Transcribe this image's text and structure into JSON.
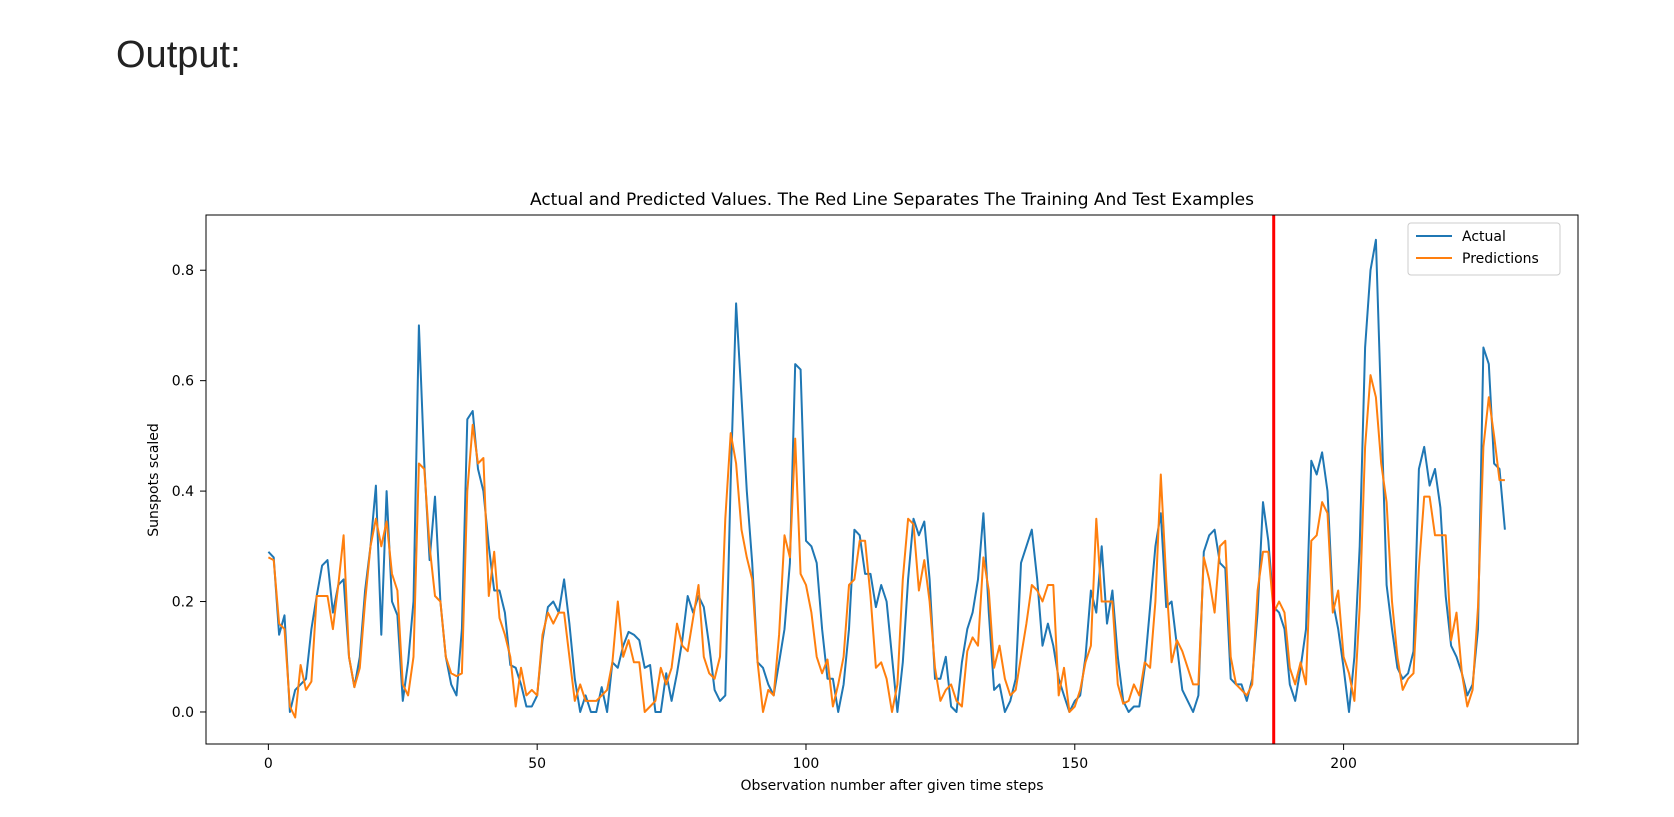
{
  "page": {
    "heading": "Output:"
  },
  "chart_data": {
    "type": "line",
    "title": "Actual and Predicted Values. The Red Line Separates The Training And Test Examples",
    "xlabel": "Observation number after given time steps",
    "ylabel": "Sunspots scaled",
    "xlim": [
      -11.6,
      243.6
    ],
    "ylim": [
      -0.058,
      0.9
    ],
    "xticks": [
      0,
      50,
      100,
      150,
      200
    ],
    "yticks": [
      0.0,
      0.2,
      0.4,
      0.6,
      0.8
    ],
    "xtick_labels": [
      "0",
      "50",
      "100",
      "150",
      "200"
    ],
    "ytick_labels": [
      "0.0",
      "0.2",
      "0.4",
      "0.6",
      "0.8"
    ],
    "legend_position": "top-right",
    "split_line": {
      "x": 187,
      "color": "#ff0000"
    },
    "series": [
      {
        "name": "Actual",
        "color": "#1f77b4",
        "values": [
          0.29,
          0.28,
          0.14,
          0.175,
          0.0,
          0.04,
          0.05,
          0.06,
          0.15,
          0.21,
          0.265,
          0.275,
          0.18,
          0.23,
          0.24,
          0.1,
          0.045,
          0.1,
          0.22,
          0.3,
          0.41,
          0.14,
          0.4,
          0.2,
          0.175,
          0.02,
          0.09,
          0.2,
          0.7,
          0.45,
          0.275,
          0.39,
          0.2,
          0.1,
          0.05,
          0.03,
          0.15,
          0.53,
          0.545,
          0.44,
          0.4,
          0.3,
          0.22,
          0.22,
          0.18,
          0.085,
          0.08,
          0.05,
          0.01,
          0.01,
          0.03,
          0.13,
          0.19,
          0.2,
          0.18,
          0.24,
          0.16,
          0.06,
          0.0,
          0.03,
          0.0,
          0.0,
          0.045,
          0.0,
          0.09,
          0.08,
          0.12,
          0.145,
          0.14,
          0.13,
          0.08,
          0.085,
          0.0,
          0.0,
          0.07,
          0.02,
          0.07,
          0.13,
          0.21,
          0.18,
          0.21,
          0.19,
          0.12,
          0.04,
          0.02,
          0.03,
          0.42,
          0.74,
          0.57,
          0.4,
          0.27,
          0.09,
          0.08,
          0.05,
          0.03,
          0.09,
          0.15,
          0.27,
          0.63,
          0.62,
          0.31,
          0.3,
          0.27,
          0.15,
          0.06,
          0.06,
          0.0,
          0.05,
          0.15,
          0.33,
          0.32,
          0.25,
          0.25,
          0.19,
          0.23,
          0.2,
          0.1,
          0.0,
          0.09,
          0.24,
          0.35,
          0.32,
          0.345,
          0.24,
          0.06,
          0.06,
          0.1,
          0.01,
          0.0,
          0.09,
          0.15,
          0.18,
          0.24,
          0.36,
          0.18,
          0.04,
          0.05,
          0.0,
          0.02,
          0.06,
          0.27,
          0.3,
          0.33,
          0.24,
          0.12,
          0.16,
          0.12,
          0.06,
          0.03,
          0.0,
          0.02,
          0.03,
          0.1,
          0.22,
          0.18,
          0.3,
          0.16,
          0.22,
          0.1,
          0.02,
          0.0,
          0.01,
          0.01,
          0.08,
          0.19,
          0.3,
          0.36,
          0.19,
          0.2,
          0.12,
          0.04,
          0.02,
          0.0,
          0.03,
          0.29,
          0.32,
          0.33,
          0.27,
          0.26,
          0.06,
          0.05,
          0.05,
          0.02,
          0.06,
          0.18,
          0.38,
          0.31,
          0.19,
          0.18,
          0.15,
          0.05,
          0.02,
          0.08,
          0.15,
          0.455,
          0.43,
          0.47,
          0.4,
          0.2,
          0.15,
          0.08,
          0.0,
          0.1,
          0.3,
          0.66,
          0.8,
          0.855,
          0.55,
          0.23,
          0.15,
          0.08,
          0.06,
          0.07,
          0.11,
          0.44,
          0.48,
          0.41,
          0.44,
          0.37,
          0.21,
          0.12,
          0.1,
          0.07,
          0.03,
          0.05,
          0.15,
          0.66,
          0.63,
          0.45,
          0.44,
          0.33
        ]
      },
      {
        "name": "Predictions",
        "color": "#ff7f0e",
        "values": [
          0.28,
          0.275,
          0.16,
          0.15,
          0.01,
          -0.01,
          0.085,
          0.04,
          0.055,
          0.21,
          0.21,
          0.21,
          0.15,
          0.23,
          0.32,
          0.1,
          0.045,
          0.08,
          0.2,
          0.3,
          0.35,
          0.3,
          0.345,
          0.25,
          0.22,
          0.05,
          0.03,
          0.1,
          0.45,
          0.44,
          0.3,
          0.21,
          0.2,
          0.1,
          0.07,
          0.065,
          0.07,
          0.4,
          0.52,
          0.45,
          0.46,
          0.21,
          0.29,
          0.17,
          0.14,
          0.1,
          0.01,
          0.08,
          0.03,
          0.04,
          0.03,
          0.14,
          0.18,
          0.16,
          0.18,
          0.18,
          0.1,
          0.02,
          0.05,
          0.02,
          0.02,
          0.02,
          0.03,
          0.04,
          0.09,
          0.2,
          0.1,
          0.13,
          0.09,
          0.09,
          0.0,
          0.01,
          0.02,
          0.08,
          0.05,
          0.08,
          0.16,
          0.12,
          0.11,
          0.17,
          0.23,
          0.1,
          0.07,
          0.06,
          0.1,
          0.35,
          0.505,
          0.45,
          0.33,
          0.28,
          0.24,
          0.09,
          0.0,
          0.04,
          0.03,
          0.14,
          0.32,
          0.28,
          0.495,
          0.25,
          0.23,
          0.18,
          0.1,
          0.07,
          0.095,
          0.01,
          0.05,
          0.1,
          0.23,
          0.24,
          0.31,
          0.31,
          0.21,
          0.08,
          0.09,
          0.06,
          0.0,
          0.05,
          0.24,
          0.35,
          0.34,
          0.22,
          0.275,
          0.2,
          0.08,
          0.02,
          0.04,
          0.05,
          0.02,
          0.01,
          0.11,
          0.135,
          0.12,
          0.28,
          0.22,
          0.08,
          0.12,
          0.06,
          0.03,
          0.04,
          0.1,
          0.16,
          0.23,
          0.22,
          0.2,
          0.23,
          0.23,
          0.03,
          0.08,
          0.0,
          0.01,
          0.04,
          0.09,
          0.12,
          0.35,
          0.2,
          0.2,
          0.2,
          0.05,
          0.015,
          0.02,
          0.05,
          0.03,
          0.09,
          0.08,
          0.2,
          0.43,
          0.24,
          0.09,
          0.13,
          0.11,
          0.08,
          0.05,
          0.05,
          0.28,
          0.24,
          0.18,
          0.3,
          0.31,
          0.1,
          0.05,
          0.04,
          0.03,
          0.05,
          0.22,
          0.29,
          0.29,
          0.18,
          0.2,
          0.18,
          0.08,
          0.05,
          0.09,
          0.05,
          0.31,
          0.32,
          0.38,
          0.36,
          0.18,
          0.22,
          0.1,
          0.07,
          0.02,
          0.19,
          0.48,
          0.61,
          0.57,
          0.45,
          0.38,
          0.2,
          0.1,
          0.04,
          0.06,
          0.07,
          0.26,
          0.39,
          0.39,
          0.32,
          0.32,
          0.32,
          0.13,
          0.18,
          0.07,
          0.01,
          0.04,
          0.19,
          0.48,
          0.57,
          0.5,
          0.42,
          0.42
        ]
      }
    ]
  }
}
